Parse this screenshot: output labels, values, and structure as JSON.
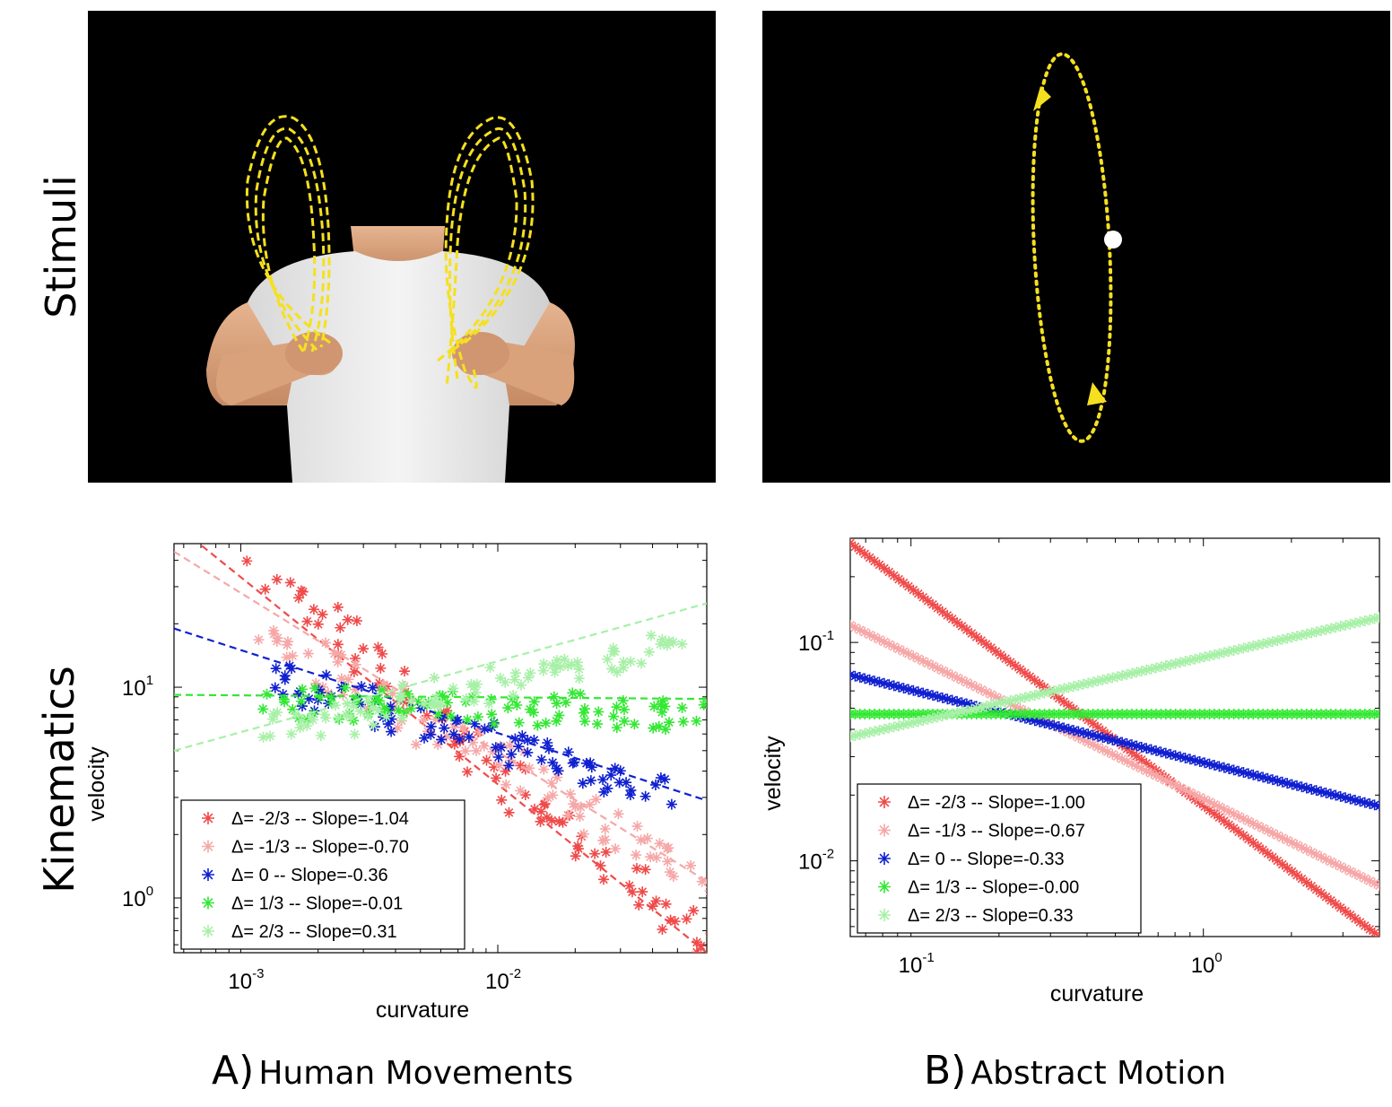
{
  "row_labels": {
    "top": "Stimuli",
    "bottom": "Kinematics"
  },
  "captions": [
    {
      "letter": "A)",
      "text": "Human Movements"
    },
    {
      "letter": "B)",
      "text": "Abstract Motion"
    }
  ],
  "colors": {
    "d_m23": "#f04a4a",
    "d_m13": "#f6a7a7",
    "d_0": "#1020d0",
    "d_13": "#33e833",
    "d_23": "#a8f0a8",
    "stim_background": "#000000",
    "trajectory": "#f5e020"
  },
  "chart_data": [
    {
      "type": "scatter",
      "panel": "A",
      "xlabel": "curvature",
      "ylabel": "velocity",
      "x_scale": "log",
      "y_scale": "log",
      "xlim": [
        0.00055,
        0.065
      ],
      "ylim": [
        0.55,
        48
      ],
      "xticks": [
        {
          "base": "10",
          "exp": "-3",
          "value": 0.001
        },
        {
          "base": "10",
          "exp": "-2",
          "value": 0.01
        }
      ],
      "yticks": [
        {
          "base": "10",
          "exp": "0",
          "value": 1
        },
        {
          "base": "10",
          "exp": "1",
          "value": 10
        }
      ],
      "legend_position": "bottom-left",
      "series": [
        {
          "name": "Δ= -2/3 -- Slope=-1.04",
          "key": "d_m23",
          "slope": -1.04,
          "fit": [
            [
              0.0006,
              55
            ],
            [
              0.065,
              0.55
            ]
          ],
          "cx": [
            0.0013,
            0.065
          ],
          "cy": [
            34,
            0.55
          ]
        },
        {
          "name": "Δ= -1/3 -- Slope=-0.70",
          "key": "d_m13",
          "slope": -0.7,
          "fit": [
            [
              0.00055,
              44
            ],
            [
              0.065,
              1.2
            ]
          ],
          "cx": [
            0.0012,
            0.065
          ],
          "cy": [
            19,
            1.2
          ]
        },
        {
          "name": "Δ=   0 -- Slope=-0.36",
          "key": "d_0",
          "slope": -0.36,
          "fit": [
            [
              0.00055,
              19
            ],
            [
              0.065,
              2.9
            ]
          ],
          "cx": [
            0.0012,
            0.045
          ],
          "cy": [
            11.5,
            3.2
          ]
        },
        {
          "name": "Δ=  1/3 -- Slope=-0.01",
          "key": "d_13",
          "slope": -0.01,
          "fit": [
            [
              0.00055,
              9.2
            ],
            [
              0.065,
              8.8
            ]
          ],
          "cx": [
            0.0012,
            0.065
          ],
          "cy": [
            8.5,
            7.5
          ]
        },
        {
          "name": "Δ=  2/3 -- Slope=0.31",
          "key": "d_23",
          "slope": 0.31,
          "fit": [
            [
              0.00055,
              5.0
            ],
            [
              0.065,
              25
            ]
          ],
          "cx": [
            0.0012,
            0.05
          ],
          "cy": [
            6.0,
            16
          ]
        }
      ]
    },
    {
      "type": "scatter",
      "panel": "B",
      "xlabel": "curvature",
      "ylabel": "velocity",
      "x_scale": "log",
      "y_scale": "log",
      "xlim": [
        0.062,
        4.0
      ],
      "ylim": [
        0.0045,
        0.3
      ],
      "xticks": [
        {
          "base": "10",
          "exp": "-1",
          "value": 0.1
        },
        {
          "base": "10",
          "exp": "0",
          "value": 1
        }
      ],
      "yticks": [
        {
          "base": "10",
          "exp": "-2",
          "value": 0.01
        },
        {
          "base": "10",
          "exp": "-1",
          "value": 0.1
        }
      ],
      "legend_position": "bottom-left",
      "series": [
        {
          "name": "Δ= -2/3 -- Slope=-1.00",
          "key": "d_m23",
          "slope": -1.0,
          "fit": [
            [
              0.062,
              0.285
            ],
            [
              4.0,
              0.0045
            ]
          ],
          "cx": [
            0.062,
            4.0
          ],
          "cy": [
            0.285,
            0.0045
          ]
        },
        {
          "name": "Δ= -1/3 -- Slope=-0.67",
          "key": "d_m13",
          "slope": -0.67,
          "fit": [
            [
              0.062,
              0.12
            ],
            [
              4.0,
              0.0077
            ]
          ],
          "cx": [
            0.062,
            4.0
          ],
          "cy": [
            0.12,
            0.0077
          ]
        },
        {
          "name": "Δ=   0 -- Slope=-0.33",
          "key": "d_0",
          "slope": -0.33,
          "fit": [
            [
              0.062,
              0.071
            ],
            [
              4.0,
              0.0178
            ]
          ],
          "cx": [
            0.062,
            4.0
          ],
          "cy": [
            0.071,
            0.0178
          ]
        },
        {
          "name": "Δ=  1/3 -- Slope=-0.00",
          "key": "d_13",
          "slope": 0.0,
          "fit": [
            [
              0.062,
              0.047
            ],
            [
              4.0,
              0.047
            ]
          ],
          "cx": [
            0.062,
            4.0
          ],
          "cy": [
            0.047,
            0.047
          ]
        },
        {
          "name": "Δ=  2/3 -- Slope=0.33",
          "key": "d_23",
          "slope": 0.33,
          "fit": [
            [
              0.062,
              0.037
            ],
            [
              4.0,
              0.13
            ]
          ],
          "cx": [
            0.062,
            4.0
          ],
          "cy": [
            0.037,
            0.13
          ]
        }
      ]
    }
  ]
}
